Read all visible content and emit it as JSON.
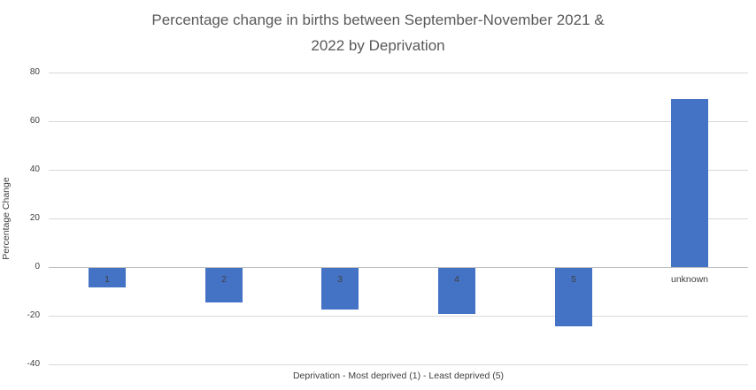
{
  "chart_data": {
    "type": "bar",
    "title": "Percentage change in births between September-November 2021 & 2022 by Deprivation",
    "title_lines": [
      "Percentage change in births between September-November 2021 &",
      "2022 by Deprivation"
    ],
    "categories": [
      "1",
      "2",
      "3",
      "4",
      "5",
      "unknown"
    ],
    "values": [
      -8,
      -14,
      -17,
      -19,
      -24,
      69
    ],
    "xlabel": "Deprivation - Most deprived (1) - Least deprived (5)",
    "ylabel": "Percentage Change",
    "ylim": [
      -40,
      80
    ],
    "yticks": [
      80,
      60,
      40,
      20,
      0,
      -20,
      -40
    ],
    "grid": true,
    "legend": "none",
    "colors": {
      "bar": "#4472C4",
      "gridline": "#D9D9D9",
      "zero_line": "#BFBFBF",
      "title_text": "#595959",
      "axis_text": "#404040",
      "background": "#FFFFFF"
    }
  }
}
